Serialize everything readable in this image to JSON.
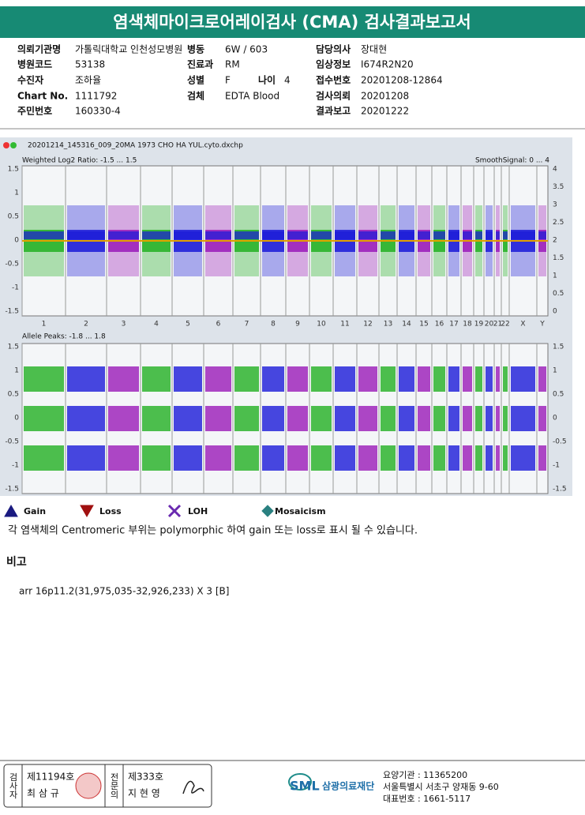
{
  "header": {
    "title": "염색체마이크로어레이검사 (CMA) 검사결과보고서"
  },
  "info": [
    {
      "label": "의뢰기관명",
      "value": "가톨릭대학교 인천성모병원"
    },
    {
      "label": "병동",
      "value": "6W / 603"
    },
    {
      "label": "담당의사",
      "value": "장대현"
    },
    {
      "label": "병원코드",
      "value": "53138"
    },
    {
      "label": "진료과",
      "value": "RM"
    },
    {
      "label": "임상정보",
      "value": "I674R2N20"
    },
    {
      "label": "수진자",
      "value": "조하율"
    },
    {
      "label": "성별",
      "value": "F"
    },
    {
      "label": "나이",
      "value": "4"
    },
    {
      "label": "접수번호",
      "value": "20201208-12864"
    },
    {
      "label": "Chart No.",
      "value": "1111792"
    },
    {
      "label": "검체",
      "value": "EDTA Blood"
    },
    {
      "label": "검사의뢰",
      "value": "20201208"
    },
    {
      "label": "주민번호",
      "value": "160330-4"
    },
    {
      "label": "결과보고",
      "value": "20201222"
    }
  ],
  "plot": {
    "file": "20201214_145316_009_20MA 1973 CHO HA YUL.cyto.dxchp",
    "top": {
      "label": "Weighted Log2 Ratio: -1.5 ... 1.5",
      "right_label": "SmoothSignal: 0 ... 4",
      "left_ticks": [
        "1.5",
        "1",
        "0.5",
        "0",
        "-0.5",
        "-1",
        "-1.5"
      ],
      "right_ticks": [
        "4",
        "3.5",
        "3",
        "2.5",
        "2",
        "1.5",
        "1",
        "0.5",
        "0"
      ]
    },
    "chromosomes": [
      "1",
      "2",
      "3",
      "4",
      "5",
      "6",
      "7",
      "8",
      "9",
      "10",
      "11",
      "12",
      "13",
      "14",
      "15",
      "16",
      "17",
      "18",
      "19",
      "20",
      "21",
      "22",
      "X",
      "Y"
    ],
    "bottom": {
      "label": "Allele Peaks: -1.8 ... 1.8",
      "left_ticks": [
        "1.5",
        "1",
        "0.5",
        "0",
        "-0.5",
        "-1",
        "-1.5"
      ],
      "right_ticks": [
        "1.5",
        "1",
        "0.5",
        "0",
        "-0.5",
        "-1",
        "-1.5"
      ]
    }
  },
  "legend": [
    "Gain",
    "Loss",
    "LOH",
    "Mosaicism"
  ],
  "note": "각 염색체의 Centromeric 부위는 polymorphic 하여 gain 또는 loss로 표시 될 수 있습니다.",
  "remarks": {
    "title": "비고",
    "text": "arr 16p11.2(31,975,035-32,926,233) X 3 [B]"
  },
  "footer": {
    "examiner_title": "검사자",
    "examiner_no": "제11194호",
    "examiner_name": "최 삼 규",
    "doctor_title": "전문의",
    "doctor_no": "제333호",
    "doctor_name": "지 현 영",
    "logo": "SML",
    "org": "삼광의료재단",
    "code": "요양기관 : 11365200",
    "address": "서울특별시 서초구 양재동 9-60",
    "phone": "대표번호 : 1661-5117"
  }
}
